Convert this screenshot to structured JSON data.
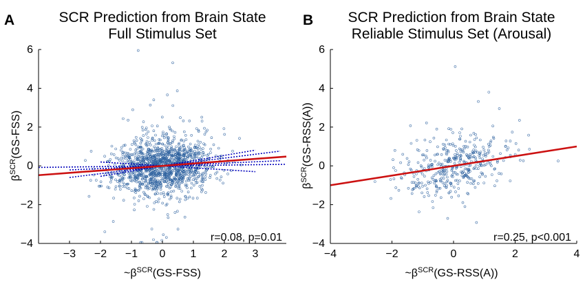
{
  "chart_data": [
    {
      "panel": "A",
      "type": "scatter",
      "title": [
        "SCR Prediction from Brain State",
        "Full Stimulus Set"
      ],
      "xlabel": {
        "prefix": "~β",
        "sup": "SCR",
        "suffix": "(GS-FSS)"
      },
      "ylabel": {
        "prefix": "β",
        "sup": "SCR",
        "suffix": "(GS-FSS)"
      },
      "xlim": [
        -4,
        4
      ],
      "ylim": [
        -4,
        6
      ],
      "xticks": [
        -3,
        -2,
        -1,
        0,
        1,
        2,
        3
      ],
      "yticks": [
        -4,
        -2,
        0,
        2,
        4,
        6
      ],
      "xtick_labels": [
        "−3",
        "−2",
        "−1",
        "0",
        "1",
        "2",
        "3"
      ],
      "ytick_labels": [
        "−4",
        "−2",
        "0",
        "2",
        "4",
        "6"
      ],
      "n_points": 1400,
      "point_spread": {
        "x_mean": 0.0,
        "x_sd": 0.8,
        "y_sd": 0.7
      },
      "fit_line": {
        "slope": 0.12,
        "intercept": 0.0,
        "color": "#cc1111"
      },
      "ci_band_lines": {
        "color": "#0000bb",
        "lines": [
          {
            "x_range": [
              -4,
              4
            ],
            "slope": 0.02,
            "intercept": 0.0
          },
          {
            "x_range": [
              -2,
              3
            ],
            "slope": 0.27,
            "intercept": 0.0
          },
          {
            "x_range": [
              -2,
              3
            ],
            "slope": -0.1,
            "intercept": 0.0
          },
          {
            "x_range": [
              -3,
              3.8
            ],
            "slope": 0.2,
            "intercept": 0.0
          },
          {
            "x_range": [
              -3,
              3.8
            ],
            "slope": 0.07,
            "intercept": 0.0
          }
        ]
      },
      "annotation": "r=0.08, p=0.01"
    },
    {
      "panel": "B",
      "type": "scatter",
      "title": [
        "SCR Prediction from Brain State",
        "Reliable Stimulus Set (Arousal)"
      ],
      "xlabel": {
        "prefix": "~β",
        "sup": "SCR",
        "suffix": "(GS-RSS(A))"
      },
      "ylabel": {
        "prefix": "β",
        "sup": "SCR",
        "suffix": "(GS-RSS(A))"
      },
      "xlim": [
        -4,
        4
      ],
      "ylim": [
        -4,
        6
      ],
      "xticks": [
        -4,
        -2,
        0,
        2,
        4
      ],
      "yticks": [
        -4,
        -2,
        0,
        2,
        4,
        6
      ],
      "xtick_labels": [
        "−4",
        "−2",
        "0",
        "2",
        "4"
      ],
      "ytick_labels": [
        "−4",
        "−2",
        "0",
        "2",
        "4",
        "6"
      ],
      "n_points": 420,
      "point_spread": {
        "x_mean": 0.0,
        "x_sd": 0.9,
        "y_sd": 0.75
      },
      "fit_line": {
        "slope": 0.25,
        "intercept": 0.0,
        "color": "#cc1111"
      },
      "annotation": "r=0.25, p<0.001"
    }
  ],
  "style": {
    "point_color": "#2a5f9e",
    "axis_color": "#000000"
  }
}
